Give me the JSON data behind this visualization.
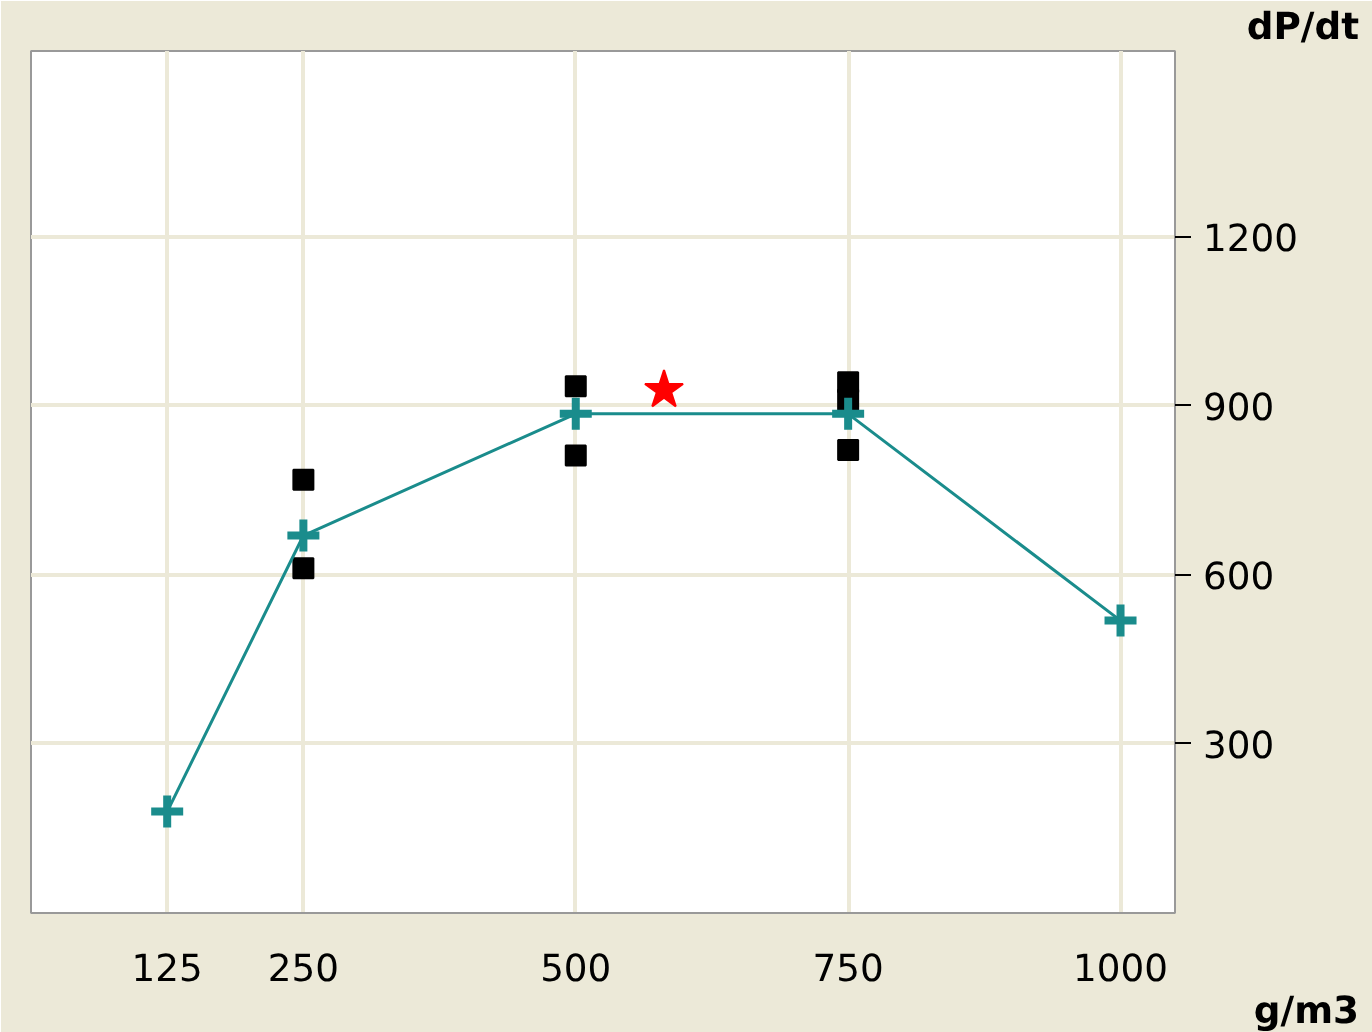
{
  "chart_data": {
    "type": "line",
    "xlabel": "g/m3",
    "ylabel": "dP/dt",
    "xlim": [
      0,
      1050
    ],
    "ylim": [
      0,
      1530
    ],
    "xticks": [
      125,
      250,
      500,
      750,
      1000
    ],
    "yticks": [
      300,
      600,
      900,
      1200
    ],
    "grid": true,
    "series": [
      {
        "type": "scatter",
        "marker": "square",
        "color": "#000000",
        "x": [
          250,
          250,
          500,
          500,
          750,
          750,
          750
        ],
        "values": [
          769,
          612,
          935,
          812,
          942,
          911,
          822
        ]
      },
      {
        "marker": "cross",
        "color": "#1a8c8c",
        "x": [
          125,
          250,
          500,
          750,
          1000
        ],
        "values": [
          180,
          670,
          886,
          886,
          519
        ]
      },
      {
        "type": "scatter",
        "marker": "star",
        "color": "#ff0000",
        "x": [
          581
        ],
        "values": [
          928
        ]
      }
    ]
  }
}
